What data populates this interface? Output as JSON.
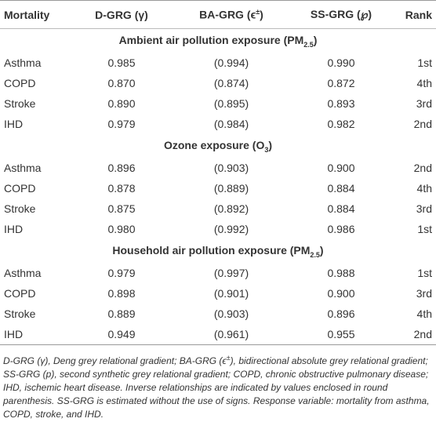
{
  "table": {
    "header": [
      "Mortality",
      "D-GRG (γ)",
      {
        "text": "BA-GRG (ϵ",
        "sup": "±",
        "after": ")"
      },
      "SS-GRG (℘)",
      "Rank"
    ],
    "sections": [
      {
        "title": {
          "text": "Ambient air pollution exposure (PM",
          "sub": "2.5",
          "after": ")"
        },
        "rows": [
          [
            "Asthma",
            "0.985",
            "(0.994)",
            "0.990",
            "1st"
          ],
          [
            "COPD",
            "0.870",
            "(0.874)",
            "0.872",
            "4th"
          ],
          [
            "Stroke",
            "0.890",
            "(0.895)",
            "0.893",
            "3rd"
          ],
          [
            "IHD",
            "0.979",
            "(0.984)",
            "0.982",
            "2nd"
          ]
        ]
      },
      {
        "title": {
          "text": "Ozone exposure (O",
          "sub": "3",
          "after": ")"
        },
        "rows": [
          [
            "Asthma",
            "0.896",
            "(0.903)",
            "0.900",
            "2nd"
          ],
          [
            "COPD",
            "0.878",
            "(0.889)",
            "0.884",
            "4th"
          ],
          [
            "Stroke",
            "0.875",
            "(0.892)",
            "0.884",
            "3rd"
          ],
          [
            "IHD",
            "0.980",
            "(0.992)",
            "0.986",
            "1st"
          ]
        ]
      },
      {
        "title": {
          "text": "Household air pollution exposure (PM",
          "sub": "2.5",
          "after": ")"
        },
        "rows": [
          [
            "Asthma",
            "0.979",
            "(0.997)",
            "0.988",
            "1st"
          ],
          [
            "COPD",
            "0.898",
            "(0.901)",
            "0.900",
            "3rd"
          ],
          [
            "Stroke",
            "0.889",
            "(0.903)",
            "0.896",
            "4th"
          ],
          [
            "IHD",
            "0.949",
            "(0.961)",
            "0.955",
            "2nd"
          ]
        ]
      }
    ]
  },
  "footnote": {
    "text": "D-GRG (γ), Deng grey relational gradient; BA-GRG (ϵ",
    "sup": "±",
    "after": "), bidirectional absolute grey relational gradient; SS-GRG (p), second synthetic grey relational gradient; COPD, chronic obstructive pulmonary disease; IHD, ischemic heart disease. Inverse relationships are indicated by values enclosed in round parenthesis. SS-GRG is estimated without the use of signs. Response variable: mortality from asthma, COPD, stroke, and IHD."
  }
}
